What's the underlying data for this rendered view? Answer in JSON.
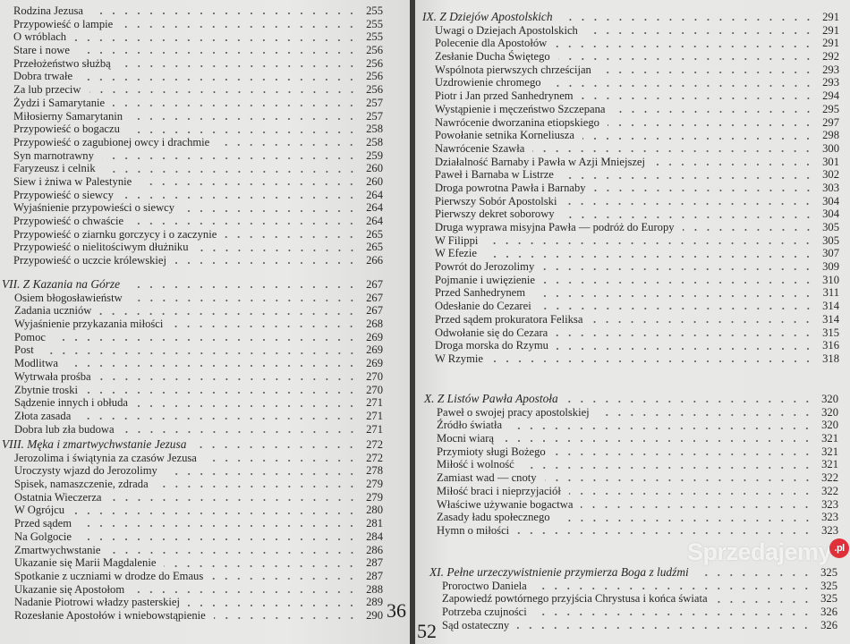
{
  "left_page": {
    "folio": "36",
    "sections": [
      {
        "heading": null,
        "entries": [
          {
            "title": "Rodzina Jezusa",
            "page": "255"
          },
          {
            "title": "Przypowieść o lampie",
            "page": "255"
          },
          {
            "title": "O wróblach",
            "page": "255"
          },
          {
            "title": "Stare i nowe",
            "page": "256"
          },
          {
            "title": "Przełożeństwo służbą",
            "page": "256"
          },
          {
            "title": "Dobra trwałe",
            "page": "256"
          },
          {
            "title": "Za lub przeciw",
            "page": "256"
          },
          {
            "title": "Żydzi i Samarytanie",
            "page": "257"
          },
          {
            "title": "Miłosierny Samarytanin",
            "page": "257"
          },
          {
            "title": "Przypowieść o bogaczu",
            "page": "258"
          },
          {
            "title": "Przypowieść o zagubionej owcy i drachmie",
            "page": "258"
          },
          {
            "title": "Syn marnotrawny",
            "page": "259"
          },
          {
            "title": "Faryzeusz i celnik",
            "page": "260"
          },
          {
            "title": "Siew i żniwa w Palestynie",
            "page": "260"
          },
          {
            "title": "Przypowieść o siewcy",
            "page": "264"
          },
          {
            "title": "Wyjaśnienie przypowieści o siewcy",
            "page": "264"
          },
          {
            "title": "Przypowieść o chwaście",
            "page": "264"
          },
          {
            "title": "Przypowieść o ziarnku gorczycy i o zaczynie",
            "page": "265"
          },
          {
            "title": "Przypowieść o nielitościwym dłużniku",
            "page": "265"
          },
          {
            "title": "Przypowieść o uczcie królewskiej",
            "page": "266"
          }
        ]
      },
      {
        "heading": {
          "title": "VII. Z Kazania na Górze",
          "page": "267"
        },
        "entries": [
          {
            "title": "Osiem błogosławieństw",
            "page": "267"
          },
          {
            "title": "Zadania uczniów",
            "page": "267"
          },
          {
            "title": "Wyjaśnienie przykazania miłości",
            "page": "268"
          },
          {
            "title": "Pomoc",
            "page": "269"
          },
          {
            "title": "Post",
            "page": "269"
          },
          {
            "title": "Modlitwa",
            "page": "269"
          },
          {
            "title": "Wytrwała prośba",
            "page": "270"
          },
          {
            "title": "Zbytnie troski",
            "page": "270"
          },
          {
            "title": "Sądzenie innych i obłuda",
            "page": "271"
          },
          {
            "title": "Złota zasada",
            "page": "271"
          },
          {
            "title": "Dobra lub zła budowa",
            "page": "271"
          }
        ]
      },
      {
        "heading": {
          "title": "VIII. Męka i zmartwychwstanie Jezusa",
          "page": "272"
        },
        "entries": [
          {
            "title": "Jerozolima i świątynia za czasów Jezusa",
            "page": "272"
          },
          {
            "title": "Uroczysty wjazd do Jerozolimy",
            "page": "278"
          },
          {
            "title": "Spisek, namaszczenie, zdrada",
            "page": "279"
          },
          {
            "title": "Ostatnia Wieczerza",
            "page": "279"
          },
          {
            "title": "W Ogrójcu",
            "page": "280"
          },
          {
            "title": "Przed sądem",
            "page": "281"
          },
          {
            "title": "Na Golgocie",
            "page": "284"
          },
          {
            "title": "Zmartwychwstanie",
            "page": "286"
          },
          {
            "title": "Ukazanie się Marii Magdalenie",
            "page": "287"
          },
          {
            "title": "Spotkanie z uczniami w drodze do Emaus",
            "page": "287"
          },
          {
            "title": "Ukazanie się Apostołom",
            "page": "288"
          },
          {
            "title": "Nadanie Piotrowi władzy pasterskiej",
            "page": "289"
          },
          {
            "title": "Rozesłanie Apostołów i wniebowstąpienie",
            "page": "290"
          }
        ]
      }
    ]
  },
  "right_page": {
    "folio": "52",
    "sections": [
      {
        "heading": {
          "title": "IX. Z Dziejów Apostolskich",
          "page": "291"
        },
        "entries": [
          {
            "title": "Uwagi o Dziejach Apostolskich",
            "page": "291"
          },
          {
            "title": "Polecenie dla Apostołów",
            "page": "291"
          },
          {
            "title": "Zesłanie Ducha Świętego",
            "page": "292"
          },
          {
            "title": "Wspólnota pierwszych chrześcijan",
            "page": "293"
          },
          {
            "title": "Uzdrowienie chromego",
            "page": "293"
          },
          {
            "title": "Piotr i Jan przed Sanhedrynem",
            "page": "294"
          },
          {
            "title": "Wystąpienie i męczeństwo Szczepana",
            "page": "295"
          },
          {
            "title": "Nawrócenie dworzanina etiopskiego",
            "page": "297"
          },
          {
            "title": "Powołanie setnika Korneliusza",
            "page": "298"
          },
          {
            "title": "Nawrócenie Szawła",
            "page": "300"
          },
          {
            "title": "Działalność Barnaby i Pawła w Azji Mniejszej",
            "page": "301"
          },
          {
            "title": "Paweł i Barnaba w Listrze",
            "page": "302"
          },
          {
            "title": "Droga powrotna Pawła i Barnaby",
            "page": "303"
          },
          {
            "title": "Pierwszy Sobór Apostolski",
            "page": "304"
          },
          {
            "title": "Pierwszy dekret soborowy",
            "page": "304"
          },
          {
            "title": "Druga wyprawa misyjna Pawła — podróż do Europy",
            "page": "305"
          },
          {
            "title": "W Filippi",
            "page": "305"
          },
          {
            "title": "W Efezie",
            "page": "307"
          },
          {
            "title": "Powrót do Jerozolimy",
            "page": "309"
          },
          {
            "title": "Pojmanie i uwięzienie",
            "page": "310"
          },
          {
            "title": "Przed Sanhedrynem",
            "page": "311"
          },
          {
            "title": "Odesłanie do Cezarei",
            "page": "314"
          },
          {
            "title": "Przed sądem prokuratora Feliksa",
            "page": "314"
          },
          {
            "title": "Odwołanie się do Cezara",
            "page": "315"
          },
          {
            "title": "Droga morska do Rzymu",
            "page": "316"
          },
          {
            "title": "W Rzymie",
            "page": "318"
          }
        ]
      },
      {
        "heading": {
          "title": "X. Z Listów Pawła Apostoła",
          "page": "320"
        },
        "entries": [
          {
            "title": "Paweł o swojej pracy apostolskiej",
            "page": "320"
          },
          {
            "title": "Źródło światła",
            "page": "320"
          },
          {
            "title": "Mocni wiarą",
            "page": "321"
          },
          {
            "title": "Przymioty sługi Bożego",
            "page": "321"
          },
          {
            "title": "Miłość i wolność",
            "page": "321"
          },
          {
            "title": "Zamiast wad — cnoty",
            "page": "322"
          },
          {
            "title": "Miłość braci i nieprzyjaciół",
            "page": "322"
          },
          {
            "title": "Właściwe używanie bogactwa",
            "page": "323"
          },
          {
            "title": "Zasady ładu społecznego",
            "page": "323"
          },
          {
            "title": "Hymn o miłości",
            "page": "323"
          }
        ]
      },
      {
        "heading": {
          "title": "XI. Pełne urzeczywistnienie przymierza Boga z ludźmi",
          "page": "325"
        },
        "entries": [
          {
            "title": "Proroctwo Daniela",
            "page": "325"
          },
          {
            "title": "Zapowiedź powtórnego przyjścia Chrystusa i końca świata",
            "page": "325"
          },
          {
            "title": "Potrzeba czujności",
            "page": "326"
          },
          {
            "title": "Sąd ostateczny",
            "page": "326"
          }
        ]
      }
    ]
  },
  "watermark": {
    "text": "Sprzedajemy",
    "badge": ".pl"
  }
}
